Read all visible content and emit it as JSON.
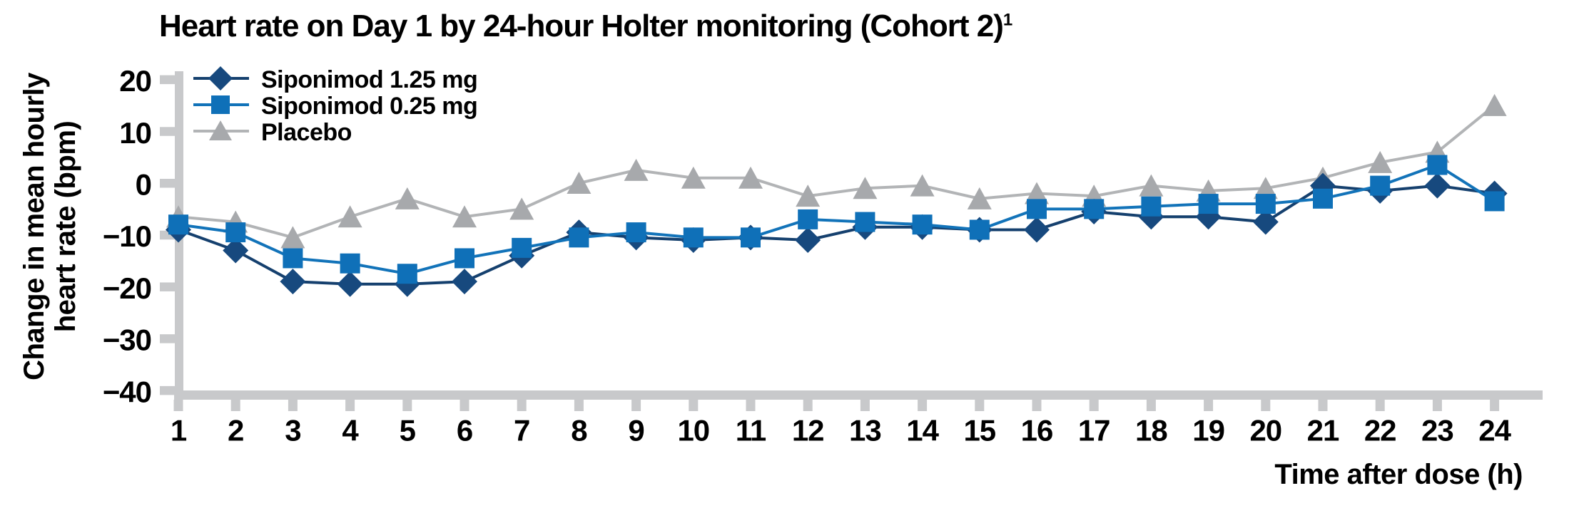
{
  "title": {
    "text": "Heart rate on Day 1 by 24-hour Holter monitoring (Cohort 2)",
    "sup": "1"
  },
  "theme": {
    "background": "#FFFFFF",
    "axis_color": "#C8C9CB",
    "text_color": "#000000",
    "siponimod_1_25_color": "#17497E",
    "siponimod_0_25_color": "#0F70B8",
    "placebo_color": "#A7A9AC"
  },
  "chart_data": {
    "type": "line",
    "title": "Heart rate on Day 1 by 24-hour Holter monitoring (Cohort 2)¹",
    "xlabel": "Time after dose (h)",
    "ylabel": "Change in mean hourly heart rate (bpm)",
    "ylabel_lines": [
      "Change in mean hourly",
      "heart rate (bpm)"
    ],
    "ylim": [
      -40,
      20
    ],
    "yticks": [
      20,
      10,
      0,
      -10,
      -20,
      -30,
      -40
    ],
    "x": [
      1,
      2,
      3,
      4,
      5,
      6,
      7,
      8,
      9,
      10,
      11,
      12,
      13,
      14,
      15,
      16,
      17,
      18,
      19,
      20,
      21,
      22,
      23,
      24
    ],
    "grid": false,
    "legend_position": "inside-top-left",
    "series": [
      {
        "name": "Siponimod 1.25 mg",
        "marker": "diamond",
        "color": "#17497E",
        "line_color": "#15406E",
        "values": [
          -9,
          -13,
          -19,
          -19.5,
          -19.5,
          -19,
          -14,
          -9.5,
          -10.5,
          -11,
          -10.5,
          -11,
          -8.5,
          -8.5,
          -9,
          -9,
          -5.5,
          -6.5,
          -6.5,
          -7.5,
          -0.5,
          -1.5,
          -0.5,
          -2
        ]
      },
      {
        "name": "Siponimod 0.25 mg",
        "marker": "square",
        "color": "#0F70B8",
        "line_color": "#1273B9",
        "values": [
          -8,
          -9.5,
          -14.5,
          -15.5,
          -17.5,
          -14.5,
          -12.5,
          -10.5,
          -9.5,
          -10.5,
          -10.5,
          -7,
          -7.5,
          -8,
          -9,
          -5,
          -5,
          -4.5,
          -4,
          -4,
          -3,
          -0.5,
          3.5,
          -3.5
        ]
      },
      {
        "name": "Placebo",
        "marker": "triangle",
        "color": "#A7A9AC",
        "line_color": "#B2B4B6",
        "values": [
          -6.5,
          -7.5,
          -10.5,
          -6.5,
          -3,
          -6.5,
          -5,
          0,
          2.5,
          1,
          1,
          -2.5,
          -1,
          -0.5,
          -3,
          -2,
          -2.5,
          -0.5,
          -1.5,
          -1,
          1,
          4,
          6,
          15
        ]
      }
    ]
  }
}
